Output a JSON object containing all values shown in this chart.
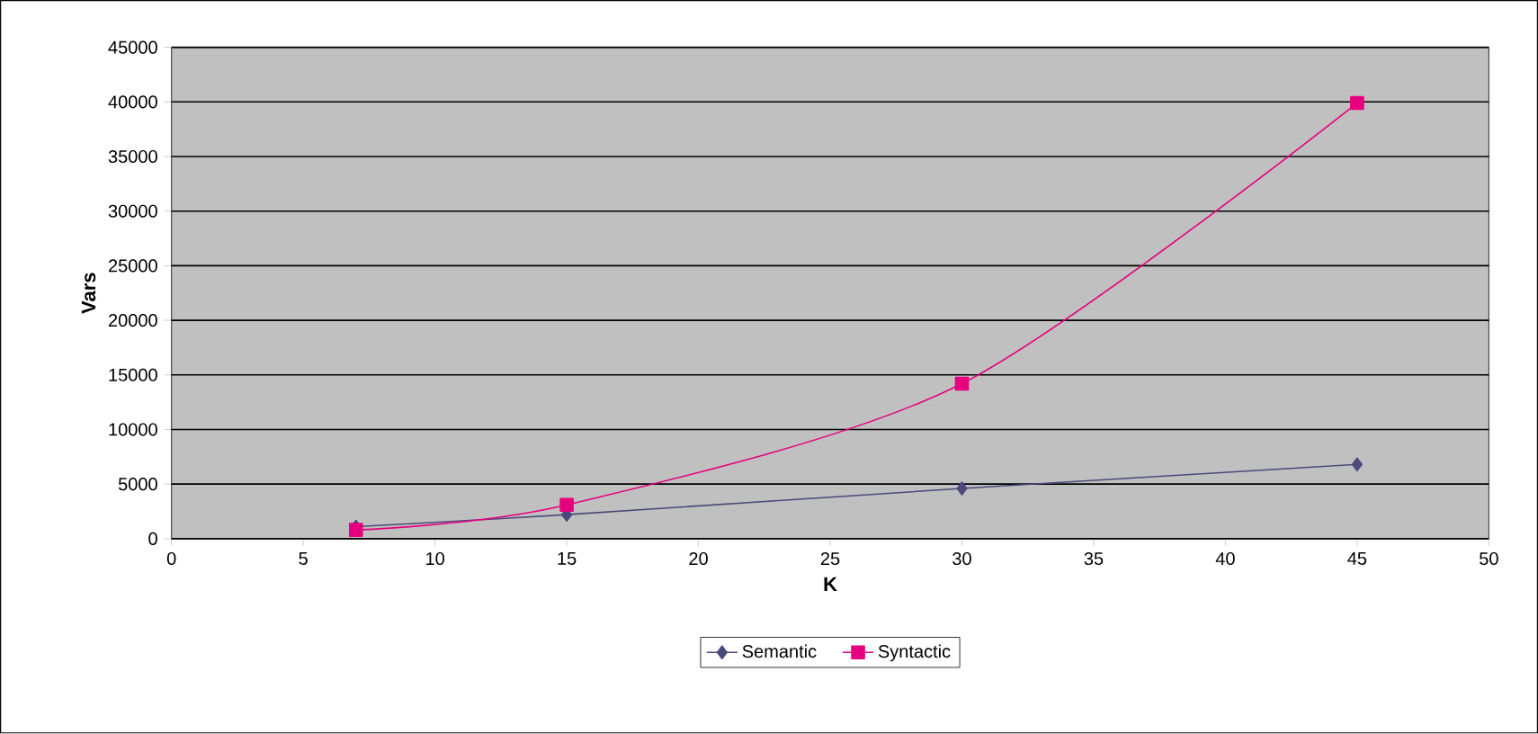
{
  "chart_data": {
    "type": "line",
    "xlabel": "K",
    "ylabel": "Vars",
    "xlim": [
      0,
      50
    ],
    "xticks": [
      0,
      5,
      10,
      15,
      20,
      25,
      30,
      35,
      40,
      45,
      50
    ],
    "ylim": [
      0,
      45000
    ],
    "yticks": [
      0,
      5000,
      10000,
      15000,
      20000,
      25000,
      30000,
      35000,
      40000,
      45000
    ],
    "grid": "y",
    "legend": "bottom",
    "series": [
      {
        "name": "Semantic",
        "color": "#4b4a7a",
        "marker": "diamond",
        "x": [
          7,
          15,
          30,
          45
        ],
        "values": [
          1100,
          2200,
          4600,
          6800
        ]
      },
      {
        "name": "Syntactic",
        "color": "#e6007e",
        "marker": "square",
        "x": [
          7,
          15,
          30,
          45
        ],
        "values": [
          800,
          3100,
          14200,
          39900
        ]
      }
    ]
  }
}
